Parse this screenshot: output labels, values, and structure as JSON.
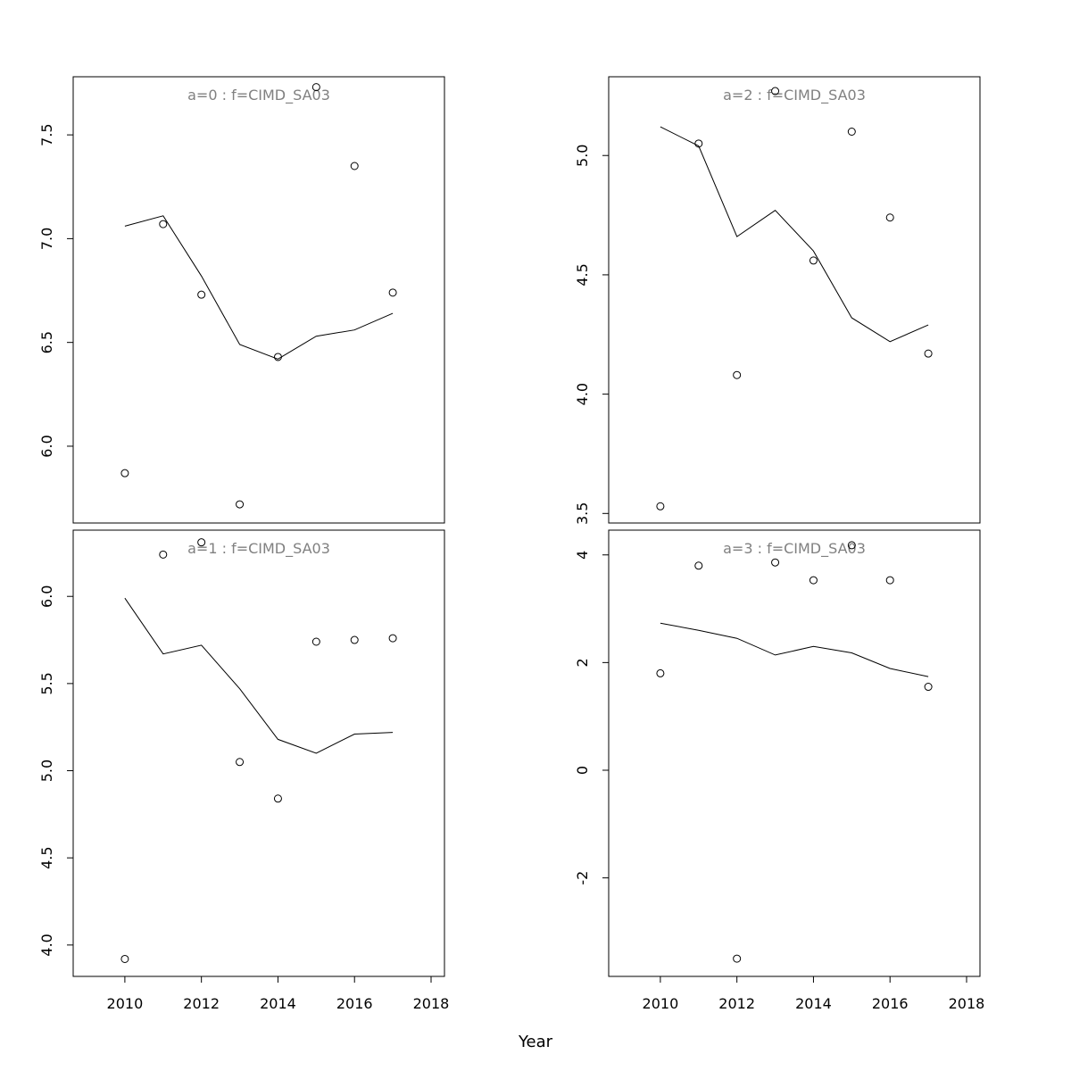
{
  "chart_data": {
    "type": "line",
    "xlabel": "Year",
    "x_ticks": [
      2010,
      2012,
      2014,
      2016,
      2018
    ],
    "x_tick_labels": [
      "2010",
      "2012",
      "2014",
      "2016",
      "2018"
    ],
    "xlim": [
      2008.65,
      2018.35
    ],
    "panels": [
      {
        "title": "a=0  :  f=CIMD_SA03",
        "ylim": [
          5.63,
          7.78
        ],
        "y_ticks": [
          6.0,
          6.5,
          7.0,
          7.5
        ],
        "y_tick_labels": [
          "6.0",
          "6.5",
          "7.0",
          "7.5"
        ],
        "x": [
          2010,
          2011,
          2012,
          2013,
          2014,
          2015,
          2016,
          2017
        ],
        "points": [
          5.87,
          7.07,
          6.73,
          5.72,
          6.43,
          7.73,
          7.35,
          6.74
        ],
        "line": [
          7.06,
          7.11,
          6.82,
          6.49,
          6.42,
          6.53,
          6.56,
          6.64
        ]
      },
      {
        "title": "a=2  :  f=CIMD_SA03",
        "ylim": [
          3.46,
          5.33
        ],
        "y_ticks": [
          3.5,
          4.0,
          4.5,
          5.0
        ],
        "y_tick_labels": [
          "3.5",
          "4.0",
          "4.5",
          "5.0"
        ],
        "x": [
          2010,
          2011,
          2012,
          2013,
          2014,
          2015,
          2016,
          2017
        ],
        "points": [
          3.53,
          5.05,
          4.08,
          5.27,
          4.56,
          5.1,
          4.74,
          4.17
        ],
        "line": [
          5.12,
          5.04,
          4.66,
          4.77,
          4.6,
          4.32,
          4.22,
          4.29
        ]
      },
      {
        "title": "a=1  :  f=CIMD_SA03",
        "ylim": [
          3.82,
          6.38
        ],
        "y_ticks": [
          4.0,
          4.5,
          5.0,
          5.5,
          6.0
        ],
        "y_tick_labels": [
          "4.0",
          "4.5",
          "5.0",
          "5.5",
          "6.0"
        ],
        "x": [
          2010,
          2011,
          2012,
          2013,
          2014,
          2015,
          2016,
          2017
        ],
        "points": [
          3.92,
          6.24,
          6.31,
          5.05,
          4.84,
          5.74,
          5.75,
          5.76
        ],
        "line": [
          5.99,
          5.67,
          5.72,
          5.47,
          5.18,
          5.1,
          5.21,
          5.22
        ]
      },
      {
        "title": "a=3  :  f=CIMD_SA03",
        "ylim": [
          -3.83,
          4.46
        ],
        "y_ticks": [
          -2,
          0,
          2,
          4
        ],
        "y_tick_labels": [
          "-2",
          "0",
          "2",
          "4"
        ],
        "x": [
          2010,
          2011,
          2012,
          2013,
          2014,
          2015,
          2016,
          2017
        ],
        "points": [
          1.8,
          3.8,
          -3.5,
          3.86,
          3.53,
          4.18,
          3.53,
          1.55
        ],
        "line": [
          2.73,
          2.6,
          2.45,
          2.14,
          2.3,
          2.18,
          1.89,
          1.74
        ]
      }
    ]
  }
}
